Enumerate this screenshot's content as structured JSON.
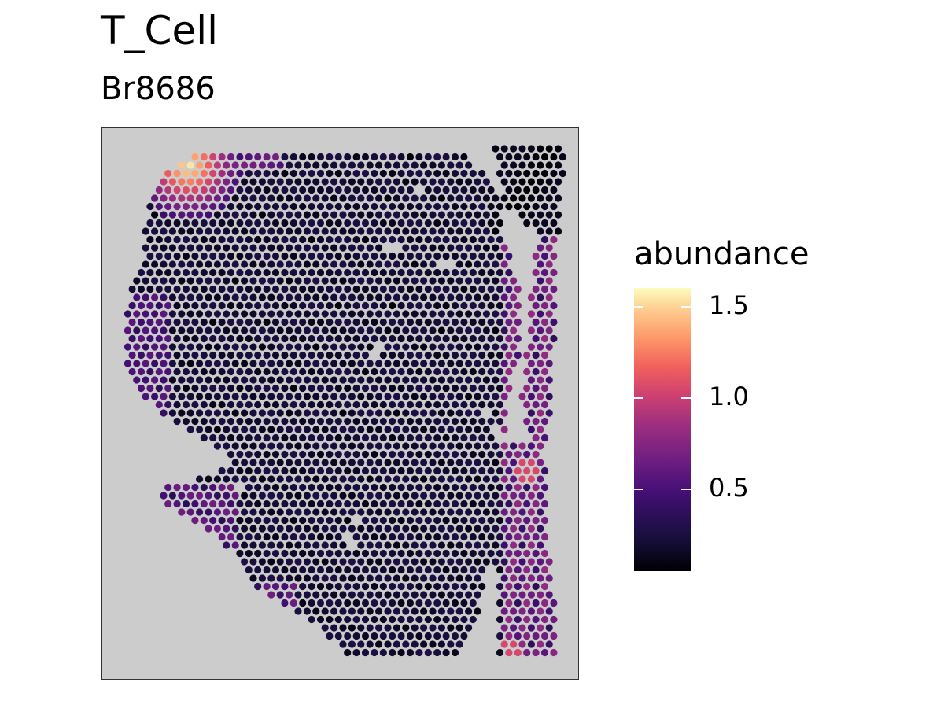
{
  "chart_data": {
    "type": "scatter",
    "title": "T_Cell",
    "subtitle": "Br8686",
    "xlabel": "",
    "ylabel": "",
    "grid": false,
    "legend": {
      "title": "abundance",
      "position": "right",
      "ticks": [
        {
          "value": 0.5,
          "label": "0.5"
        },
        {
          "value": 1.0,
          "label": "1.0"
        },
        {
          "value": 1.5,
          "label": "1.5"
        }
      ],
      "range": [
        0.05,
        1.6
      ],
      "palette": "magma"
    },
    "panel_background": "#cccccc",
    "description": "Spatial spot map of T_Cell abundance; most spots near 0.1-0.3, higher values at top-left corner (up to ~1.6) and right margin (~0.8-1.1)."
  }
}
